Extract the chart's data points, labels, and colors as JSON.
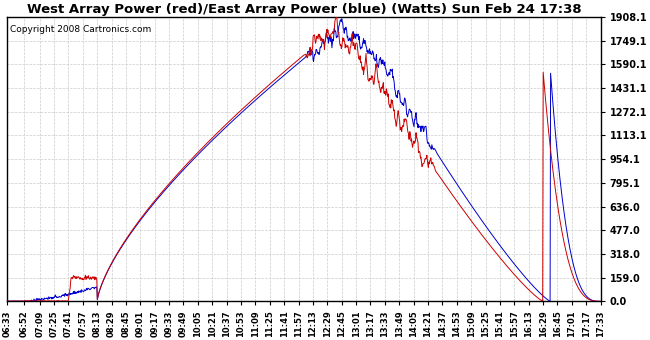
{
  "title": "West Array Power (red)/East Array Power (blue) (Watts) Sun Feb 24 17:38",
  "copyright": "Copyright 2008 Cartronics.com",
  "background_color": "#ffffff",
  "plot_bg_color": "#ffffff",
  "grid_color": "#cccccc",
  "red_color": "#cc0000",
  "blue_color": "#0000cc",
  "yticks": [
    0.0,
    159.0,
    318.0,
    477.0,
    636.0,
    795.1,
    954.1,
    1113.1,
    1272.1,
    1431.1,
    1590.1,
    1749.1,
    1908.1
  ],
  "ymax": 1908.1,
  "ymin": 0.0,
  "xtick_labels": [
    "06:33",
    "06:52",
    "07:09",
    "07:25",
    "07:41",
    "07:57",
    "08:13",
    "08:29",
    "08:45",
    "09:01",
    "09:17",
    "09:33",
    "09:49",
    "10:05",
    "10:21",
    "10:37",
    "10:53",
    "11:09",
    "11:25",
    "11:41",
    "11:57",
    "12:13",
    "12:29",
    "12:45",
    "13:01",
    "13:17",
    "13:33",
    "13:49",
    "14:05",
    "14:21",
    "14:37",
    "14:53",
    "15:09",
    "15:25",
    "15:41",
    "15:57",
    "16:13",
    "16:29",
    "16:45",
    "17:01",
    "17:17",
    "17:33"
  ],
  "figsize": [
    6.5,
    3.4
  ],
  "dpi": 100,
  "title_fontsize": 9.5,
  "copyright_fontsize": 6.5
}
